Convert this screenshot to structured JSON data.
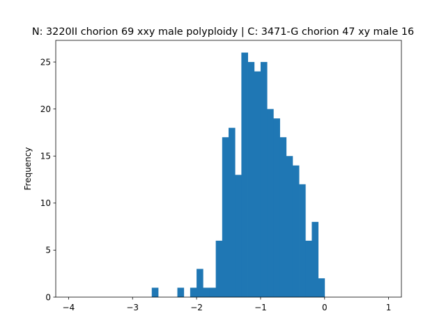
{
  "chart_data": {
    "type": "bar",
    "title": "N: 3220II chorion 69 xxy male polyploidy | C: 3471-G chorion 47 xy male 16",
    "xlabel": "",
    "ylabel": "Frequency",
    "xlim": [
      -4.2,
      1.2
    ],
    "ylim": [
      0,
      27.3
    ],
    "xticks": [
      -4,
      -3,
      -2,
      -1,
      0,
      1
    ],
    "xtick_labels": [
      "−4",
      "−3",
      "−2",
      "−1",
      "0",
      "1"
    ],
    "yticks": [
      0,
      5,
      10,
      15,
      20,
      25
    ],
    "ytick_labels": [
      "0",
      "5",
      "10",
      "15",
      "20",
      "25"
    ],
    "bin_edges": [
      -2.7,
      -2.6,
      -2.5,
      -2.4,
      -2.3,
      -2.2,
      -2.1,
      -2.0,
      -1.9,
      -1.8,
      -1.7,
      -1.6,
      -1.5,
      -1.4,
      -1.3,
      -1.2,
      -1.1,
      -1.0,
      -0.9,
      -0.8,
      -0.7,
      -0.6,
      -0.5,
      -0.4,
      -0.3,
      -0.2,
      -0.1,
      0.0
    ],
    "values": [
      1,
      0,
      0,
      0,
      1,
      0,
      1,
      3,
      1,
      1,
      6,
      17,
      18,
      13,
      26,
      25,
      24,
      25,
      20,
      19,
      17,
      15,
      14,
      12,
      6,
      8,
      2
    ],
    "color": "#1f77b4",
    "grid": false,
    "legend": "none"
  }
}
